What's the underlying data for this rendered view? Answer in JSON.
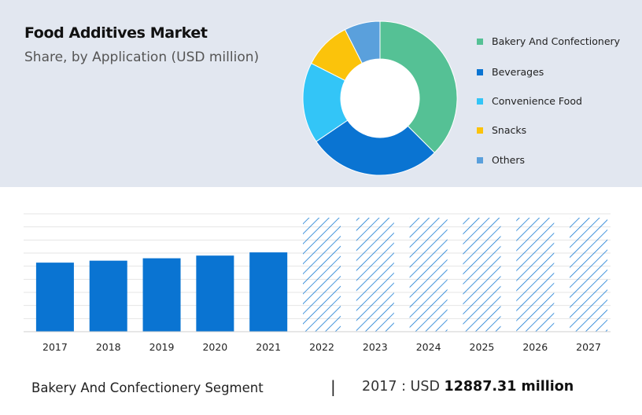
{
  "title": "Food Additives Market",
  "subtitle": "Share, by Application (USD million)",
  "colors": {
    "bakery": "#55c195",
    "beverages": "#0a74d2",
    "convenience": "#33c5f7",
    "snacks": "#fbc30b",
    "others": "#5aa0dc",
    "bar": "#0a74d2",
    "forecast_hatch": "#0a74d2"
  },
  "chart_data": [
    {
      "type": "pie",
      "donut": true,
      "categories": [
        "Bakery And Confectionery",
        "Beverages",
        "Convenience Food",
        "Snacks",
        "Others"
      ],
      "values": [
        37.5,
        28.0,
        17.0,
        10.0,
        7.5
      ],
      "legend_position": "right"
    },
    {
      "type": "bar",
      "categories": [
        "2017",
        "2018",
        "2019",
        "2020",
        "2021",
        "2022",
        "2023",
        "2024",
        "2025",
        "2026",
        "2027"
      ],
      "values": [
        12887.31,
        13250,
        13700,
        14200,
        14800,
        null,
        null,
        null,
        null,
        null,
        null
      ],
      "forecast_categories": [
        "2022",
        "2023",
        "2024",
        "2025",
        "2026",
        "2027"
      ],
      "ylim": [
        0,
        22000
      ],
      "grid": true,
      "ylabel": "",
      "xlabel": ""
    }
  ],
  "footer": {
    "segment": "Bakery And Confectionery Segment",
    "separator": "|",
    "year_prefix": "2017 : USD",
    "value": "12887.31 million"
  }
}
